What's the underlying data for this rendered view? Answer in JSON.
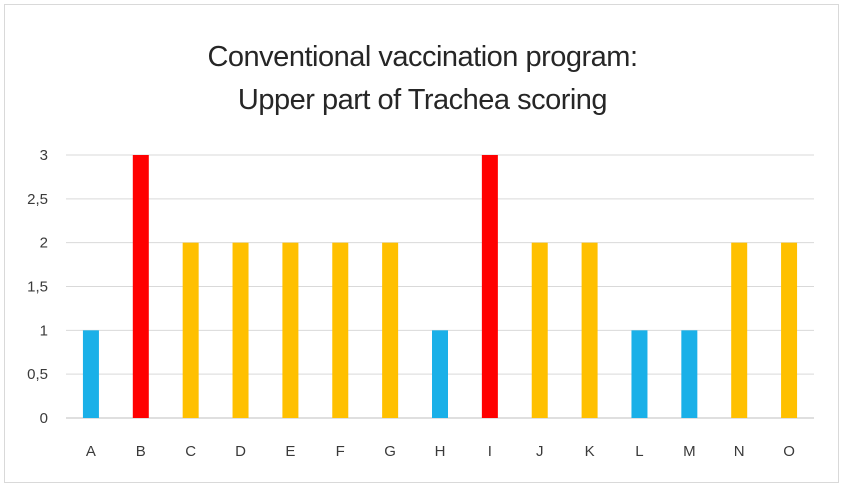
{
  "chart_data": {
    "type": "bar",
    "title_lines": [
      "Conventional  vaccination program:",
      "Upper part of Trachea scoring"
    ],
    "categories": [
      "A",
      "B",
      "C",
      "D",
      "E",
      "F",
      "G",
      "H",
      "I",
      "J",
      "K",
      "L",
      "M",
      "N",
      "O"
    ],
    "values": [
      1,
      3,
      2,
      2,
      2,
      2,
      2,
      1,
      3,
      2,
      2,
      1,
      1,
      2,
      2
    ],
    "ylim": [
      0,
      3
    ],
    "yticks": [
      "0",
      "0,5",
      "1",
      "1,5",
      "2",
      "2,5",
      "3"
    ],
    "grid": true,
    "xlabel": "",
    "ylabel": "",
    "legend": "none",
    "colors": {
      "1": "#1ab0e8",
      "2": "#ffc000",
      "3": "#ff0000",
      "grid": "#d9d9d9",
      "axis": "#bfbfbf"
    }
  }
}
